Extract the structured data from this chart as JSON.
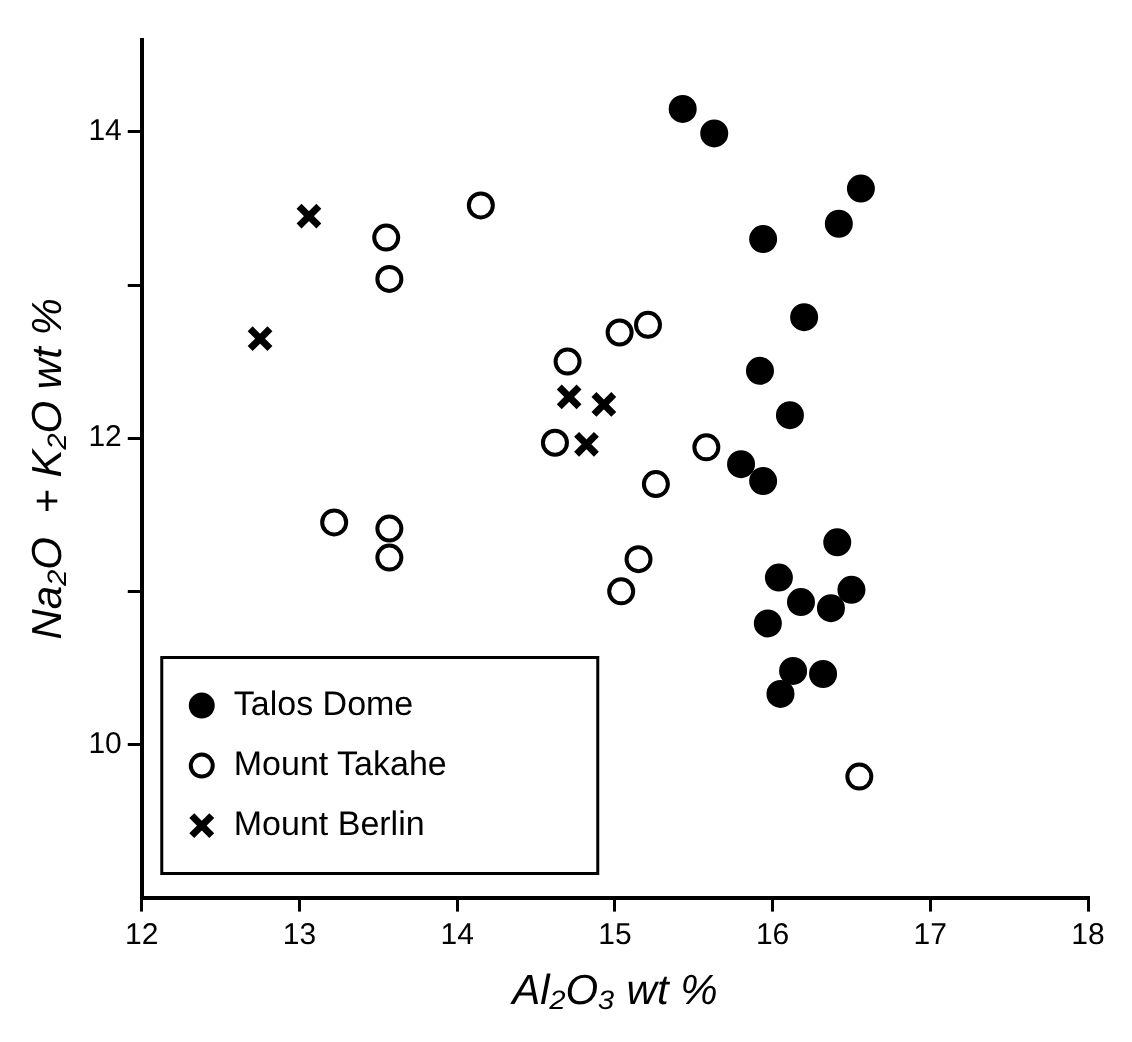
{
  "chart_data": {
    "type": "scatter",
    "xlabel": "Al₂O₃ wt %",
    "ylabel": "Na₂O  + K₂O wt %",
    "xlim": [
      12,
      18
    ],
    "xticks": [
      12,
      13,
      14,
      15,
      16,
      17,
      18
    ],
    "ylim": [
      9,
      14.6
    ],
    "yticks": [
      10,
      {
        "value": 11,
        "label": null
      },
      12,
      {
        "value": 13,
        "label": null
      },
      14
    ],
    "grid": false,
    "legend": "bottom left",
    "series": [
      {
        "name": "Talos Dome",
        "color": "#000000",
        "marker": "circle",
        "x": [
          15.43,
          15.63,
          16.56,
          16.42,
          15.94,
          16.2,
          15.92,
          16.11,
          15.8,
          15.94,
          16.41,
          16.04,
          16.5,
          16.18,
          16.37,
          15.97,
          16.13,
          16.32,
          16.05
        ],
        "values": [
          14.15,
          13.99,
          13.63,
          13.4,
          13.3,
          12.79,
          12.44,
          12.15,
          11.83,
          11.72,
          11.32,
          11.09,
          11.01,
          10.93,
          10.89,
          10.79,
          10.48,
          10.46,
          10.33
        ]
      },
      {
        "name": "Mount Takahe",
        "color": "#ffffff",
        "marker": "circle",
        "x": [
          14.15,
          13.55,
          13.57,
          15.03,
          15.21,
          14.7,
          14.62,
          15.58,
          15.26,
          15.15,
          15.04,
          16.55,
          13.22,
          13.57,
          13.57
        ],
        "values": [
          13.52,
          13.31,
          13.04,
          12.69,
          12.74,
          12.5,
          11.97,
          11.94,
          11.7,
          11.21,
          11.0,
          9.79,
          11.45,
          11.41,
          11.22
        ]
      },
      {
        "name": "Mount Berlin",
        "color": "#000000",
        "marker": "cross",
        "x": [
          13.06,
          12.75,
          14.71,
          14.93,
          14.82
        ],
        "values": [
          13.45,
          12.65,
          12.27,
          12.22,
          11.96
        ]
      }
    ]
  }
}
